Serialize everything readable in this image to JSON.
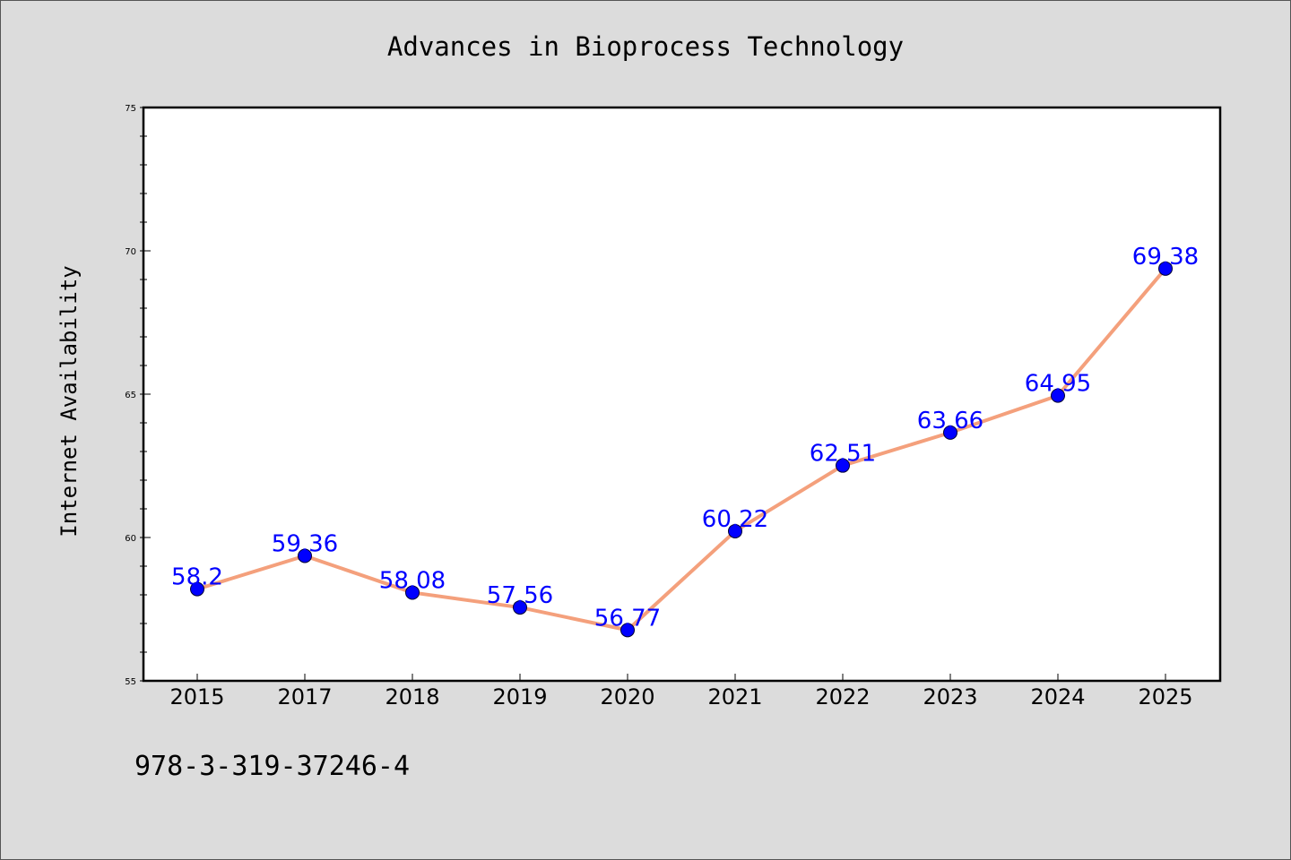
{
  "chart_data": {
    "type": "line",
    "title": "Advances in Bioprocess Technology",
    "xlabel": "",
    "ylabel": "Internet Availability",
    "categories": [
      "2015",
      "2017",
      "2018",
      "2019",
      "2020",
      "2021",
      "2022",
      "2023",
      "2024",
      "2025"
    ],
    "series": [
      {
        "values": [
          58.2,
          59.36,
          58.08,
          57.56,
          56.77,
          60.22,
          62.51,
          63.66,
          64.95,
          69.38
        ]
      }
    ],
    "data_labels": [
      "58.2",
      "59.36",
      "58.08",
      "57.56",
      "56.77",
      "60.22",
      "62.51",
      "63.66",
      "64.95",
      "69.38"
    ],
    "ylim": [
      55,
      75
    ],
    "yticks": [
      "55",
      "60",
      "65",
      "70",
      "75"
    ],
    "grid": false,
    "legend": "none",
    "colors": {
      "line": "#f4a07c",
      "marker": "#0000ff",
      "label": "#0000ff",
      "background": "#dcdcdc",
      "plot_background": "#ffffff"
    }
  },
  "footer": {
    "text": "978-3-319-37246-4"
  }
}
